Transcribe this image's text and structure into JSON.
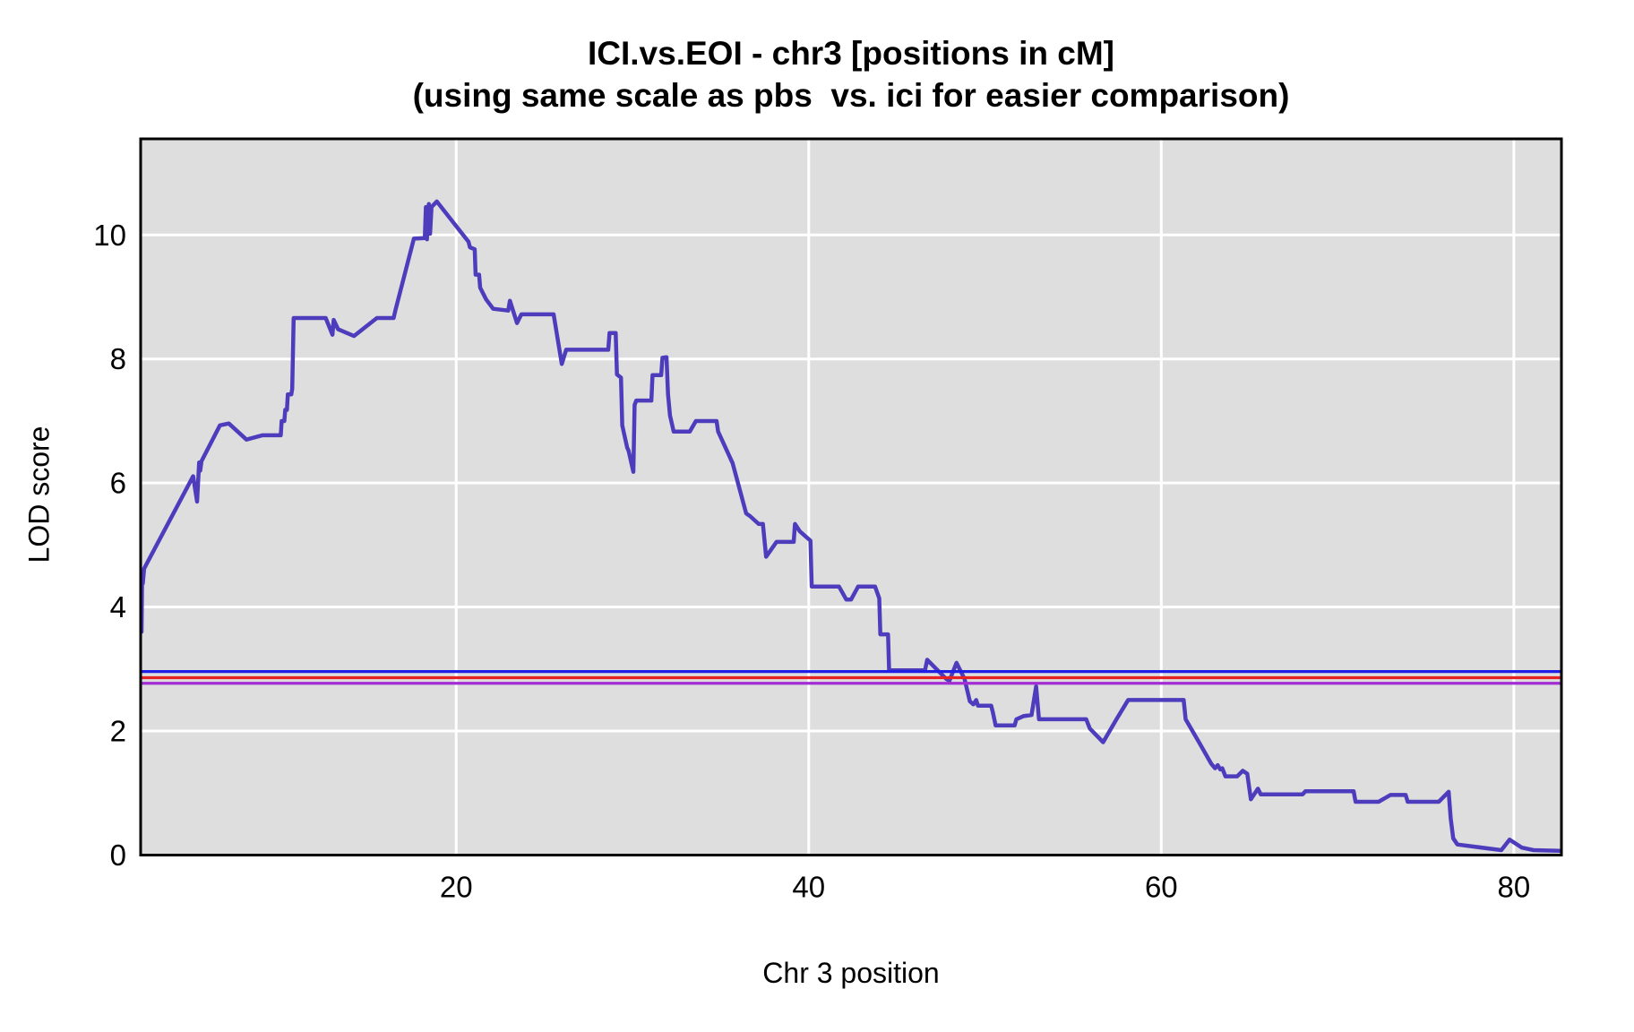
{
  "title": {
    "line1": "ICI.vs.EOI - chr3 [positions in cM]",
    "line2": "(using same scale as pbs  vs. ici for easier comparison)"
  },
  "chart_data": {
    "type": "line",
    "title": "ICI.vs.EOI - chr3 [positions in cM]",
    "subtitle": "(using same scale as pbs  vs. ici for easier comparison)",
    "xlabel": "Chr 3 position",
    "ylabel": "LOD score",
    "xlim": [
      2.1,
      82.7
    ],
    "ylim": [
      0,
      11.55
    ],
    "xticks": [
      20,
      40,
      60,
      80
    ],
    "yticks": [
      0,
      2,
      4,
      6,
      8,
      10
    ],
    "grid": true,
    "panel_color": "#dedede",
    "grid_color": "#ffffff",
    "border_color": "#000000",
    "threshold_lines": [
      {
        "name": "threshold-blue",
        "color": "#1e1ee4",
        "lod": 2.96
      },
      {
        "name": "threshold-red",
        "color": "#e62222",
        "lod": 2.86
      },
      {
        "name": "threshold-purple",
        "color": "#a22ed2",
        "lod": 2.77
      }
    ],
    "series": [
      {
        "name": "LOD curve",
        "color": "#4d3dbd",
        "points": [
          [
            2.15,
            3.6
          ],
          [
            2.18,
            4.45
          ],
          [
            2.22,
            4.38
          ],
          [
            2.3,
            4.62
          ],
          [
            5.08,
            6.11
          ],
          [
            5.18,
            5.92
          ],
          [
            5.3,
            5.7
          ],
          [
            5.42,
            6.33
          ],
          [
            5.48,
            6.2
          ],
          [
            5.55,
            6.35
          ],
          [
            6.6,
            6.93
          ],
          [
            7.1,
            6.96
          ],
          [
            8.1,
            6.7
          ],
          [
            9.0,
            6.77
          ],
          [
            10.05,
            6.77
          ],
          [
            10.1,
            7.0
          ],
          [
            10.25,
            7.0
          ],
          [
            10.3,
            7.18
          ],
          [
            10.4,
            7.18
          ],
          [
            10.45,
            7.43
          ],
          [
            10.65,
            7.43
          ],
          [
            10.7,
            7.52
          ],
          [
            10.78,
            8.66
          ],
          [
            12.6,
            8.66
          ],
          [
            12.98,
            8.39
          ],
          [
            13.05,
            8.63
          ],
          [
            13.3,
            8.48
          ],
          [
            14.2,
            8.37
          ],
          [
            15.5,
            8.66
          ],
          [
            16.45,
            8.66
          ],
          [
            16.55,
            8.78
          ],
          [
            17.6,
            9.94
          ],
          [
            18.22,
            9.95
          ],
          [
            18.28,
            10.45
          ],
          [
            18.34,
            9.93
          ],
          [
            18.45,
            10.5
          ],
          [
            18.52,
            10.02
          ],
          [
            18.6,
            10.45
          ],
          [
            18.9,
            10.54
          ],
          [
            20.7,
            9.89
          ],
          [
            20.78,
            9.8
          ],
          [
            21.05,
            9.77
          ],
          [
            21.1,
            9.36
          ],
          [
            21.3,
            9.36
          ],
          [
            21.36,
            9.15
          ],
          [
            21.7,
            8.96
          ],
          [
            22.1,
            8.81
          ],
          [
            22.95,
            8.78
          ],
          [
            23.05,
            8.94
          ],
          [
            23.45,
            8.58
          ],
          [
            23.7,
            8.72
          ],
          [
            25.53,
            8.72
          ],
          [
            25.99,
            7.92
          ],
          [
            26.24,
            8.15
          ],
          [
            28.63,
            8.15
          ],
          [
            28.7,
            8.42
          ],
          [
            29.05,
            8.42
          ],
          [
            29.12,
            7.75
          ],
          [
            29.35,
            7.7
          ],
          [
            29.42,
            6.93
          ],
          [
            29.7,
            6.57
          ],
          [
            29.78,
            6.52
          ],
          [
            30.05,
            6.18
          ],
          [
            30.12,
            7.26
          ],
          [
            30.22,
            7.33
          ],
          [
            31.07,
            7.33
          ],
          [
            31.14,
            7.74
          ],
          [
            31.63,
            7.74
          ],
          [
            31.7,
            8.02
          ],
          [
            31.93,
            8.03
          ],
          [
            32.02,
            7.43
          ],
          [
            32.13,
            7.09
          ],
          [
            32.34,
            6.83
          ],
          [
            33.25,
            6.83
          ],
          [
            33.6,
            7.0
          ],
          [
            34.77,
            7.0
          ],
          [
            34.86,
            6.83
          ],
          [
            35.68,
            6.32
          ],
          [
            36.45,
            5.51
          ],
          [
            36.7,
            5.46
          ],
          [
            37.16,
            5.34
          ],
          [
            37.4,
            5.34
          ],
          [
            37.58,
            4.81
          ],
          [
            38.17,
            5.05
          ],
          [
            39.15,
            5.05
          ],
          [
            39.22,
            5.34
          ],
          [
            39.5,
            5.22
          ],
          [
            40.1,
            5.07
          ],
          [
            40.17,
            4.33
          ],
          [
            41.72,
            4.33
          ],
          [
            42.13,
            4.12
          ],
          [
            42.4,
            4.12
          ],
          [
            42.8,
            4.33
          ],
          [
            43.76,
            4.33
          ],
          [
            44.0,
            4.14
          ],
          [
            44.06,
            3.56
          ],
          [
            44.5,
            3.56
          ],
          [
            44.56,
            2.98
          ],
          [
            46.6,
            2.98
          ],
          [
            46.72,
            3.15
          ],
          [
            47.8,
            2.84
          ],
          [
            47.98,
            2.81
          ],
          [
            48.38,
            3.1
          ],
          [
            48.84,
            2.84
          ],
          [
            48.98,
            2.67
          ],
          [
            49.14,
            2.48
          ],
          [
            49.34,
            2.43
          ],
          [
            49.5,
            2.5
          ],
          [
            49.6,
            2.41
          ],
          [
            50.35,
            2.41
          ],
          [
            50.44,
            2.31
          ],
          [
            50.6,
            2.09
          ],
          [
            51.68,
            2.09
          ],
          [
            51.78,
            2.19
          ],
          [
            52.18,
            2.24
          ],
          [
            52.64,
            2.26
          ],
          [
            52.9,
            2.72
          ],
          [
            53.06,
            2.19
          ],
          [
            55.74,
            2.19
          ],
          [
            55.95,
            2.04
          ],
          [
            56.7,
            1.82
          ],
          [
            57.46,
            2.19
          ],
          [
            58.12,
            2.5
          ],
          [
            61.27,
            2.5
          ],
          [
            61.38,
            2.19
          ],
          [
            62.18,
            1.8
          ],
          [
            62.84,
            1.47
          ],
          [
            63.05,
            1.4
          ],
          [
            63.2,
            1.45
          ],
          [
            63.35,
            1.38
          ],
          [
            63.46,
            1.4
          ],
          [
            63.64,
            1.27
          ],
          [
            64.31,
            1.27
          ],
          [
            64.62,
            1.36
          ],
          [
            64.88,
            1.31
          ],
          [
            65.08,
            0.9
          ],
          [
            65.48,
            1.07
          ],
          [
            65.64,
            0.98
          ],
          [
            68.02,
            0.98
          ],
          [
            68.18,
            1.03
          ],
          [
            70.91,
            1.03
          ],
          [
            71.02,
            0.86
          ],
          [
            72.33,
            0.86
          ],
          [
            72.7,
            0.92
          ],
          [
            73.0,
            0.97
          ],
          [
            73.86,
            0.97
          ],
          [
            73.98,
            0.86
          ],
          [
            75.74,
            0.86
          ],
          [
            76.3,
            1.02
          ],
          [
            76.42,
            0.59
          ],
          [
            76.56,
            0.27
          ],
          [
            76.8,
            0.17
          ],
          [
            79.29,
            0.08
          ],
          [
            79.76,
            0.25
          ],
          [
            80.46,
            0.12
          ],
          [
            81.12,
            0.08
          ],
          [
            82.6,
            0.07
          ]
        ]
      }
    ],
    "legend": null
  }
}
